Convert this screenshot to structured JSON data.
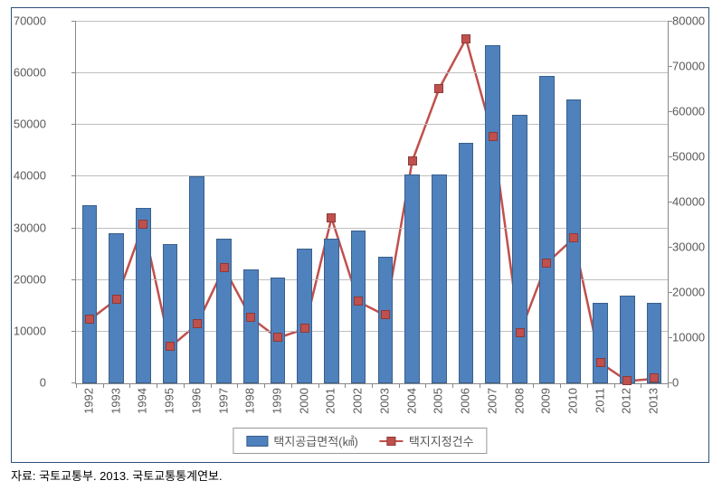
{
  "chart": {
    "type": "bar+line",
    "background_color": "#ffffff",
    "border_color": "#2f4f7f",
    "grid_color": "#bfbfbf",
    "axis_color": "#888888",
    "tick_font_size": 13,
    "tick_color": "#595959",
    "categories": [
      "1992",
      "1993",
      "1994",
      "1995",
      "1996",
      "1997",
      "1998",
      "1999",
      "2000",
      "2001",
      "2002",
      "2003",
      "2004",
      "2005",
      "2006",
      "2007",
      "2008",
      "2009",
      "2010",
      "2011",
      "2012",
      "2013"
    ],
    "left_axis": {
      "min": 0,
      "max": 70000,
      "step": 10000,
      "ticks": [
        "0",
        "10000",
        "20000",
        "30000",
        "40000",
        "50000",
        "60000",
        "70000"
      ]
    },
    "right_axis": {
      "min": 0,
      "max": 80000,
      "step": 10000,
      "ticks": [
        "0",
        "10000",
        "20000",
        "30000",
        "40000",
        "50000",
        "60000",
        "70000",
        "80000"
      ]
    },
    "bars": {
      "label": "택지공급면적(㎢)",
      "color": "#4f81bd",
      "border_color": "#3a5f8a",
      "width_ratio": 0.56,
      "values": [
        34500,
        29000,
        34000,
        27000,
        40000,
        28000,
        22000,
        20500,
        26000,
        28000,
        29500,
        24500,
        40500,
        40500,
        46500,
        65500,
        52000,
        59500,
        55000,
        15500,
        17000,
        15500
      ]
    },
    "line": {
      "label": "택지지정건수",
      "color": "#c0504d",
      "border_color": "#8c3a38",
      "marker": "square",
      "marker_size": 10,
      "line_width": 2.5,
      "values": [
        14000,
        18500,
        35000,
        8000,
        13000,
        25500,
        14500,
        10000,
        12000,
        36500,
        18000,
        15000,
        49000,
        65000,
        76000,
        54500,
        11000,
        26500,
        32000,
        4500,
        500,
        1000
      ]
    },
    "legend": {
      "items": [
        {
          "key": "bars",
          "label": "택지공급면적(㎢)"
        },
        {
          "key": "line",
          "label": "택지지정건수"
        }
      ]
    }
  },
  "source": "자료: 국토교통부. 2013. 국토교통통계연보."
}
